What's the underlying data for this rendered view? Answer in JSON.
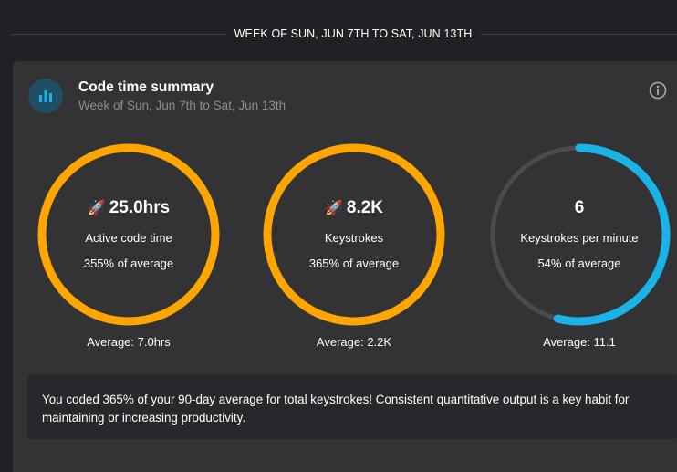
{
  "header": {
    "week_title": "WEEK OF SUN, JUN 7TH TO SAT, JUN 13TH"
  },
  "summary": {
    "title": "Code time summary",
    "subtitle": "Week of Sun, Jun 7th to Sat, Jun 13th",
    "icon": "bar-chart-icon",
    "info_icon": "info-icon"
  },
  "colors": {
    "orange": "#ffa500",
    "blue": "#1ab3e6",
    "track": "#4a4b4e"
  },
  "metrics": [
    {
      "emoji": "🚀",
      "value": "25.0hrs",
      "label": "Active code time",
      "percent_text": "355% of average",
      "average_text": "Average: 7.0hrs",
      "fill_fraction": 1.0,
      "color": "#ffa500"
    },
    {
      "emoji": "🚀",
      "value": "8.2K",
      "label": "Keystrokes",
      "percent_text": "365% of average",
      "average_text": "Average: 2.2K",
      "fill_fraction": 1.0,
      "color": "#ffa500"
    },
    {
      "emoji": "",
      "value": "6",
      "label": "Keystrokes per minute",
      "percent_text": "54% of average",
      "average_text": "Average: 11.1",
      "fill_fraction": 0.54,
      "color": "#1ab3e6"
    }
  ],
  "insight": {
    "text": "You coded 365% of your 90-day average for total keystrokes! Consistent quantitative output is a key habit for maintaining or increasing productivity."
  }
}
